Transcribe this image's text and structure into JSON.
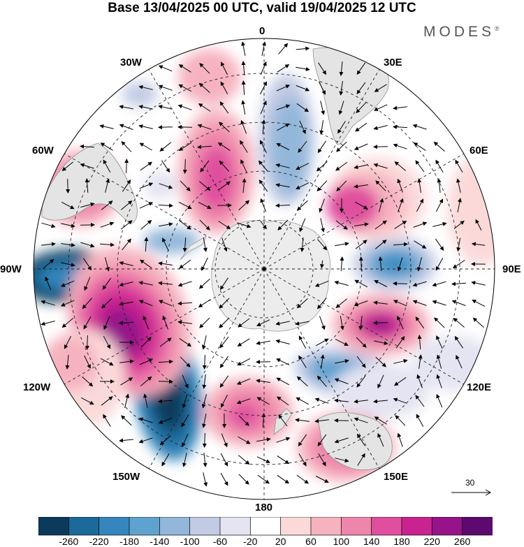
{
  "title": "Base 13/04/2025 00 UTC, valid 19/04/2025 12 UTC",
  "brand": "MODES",
  "brand_mark": "®",
  "longitude_labels": {
    "n0": "0",
    "e30": "30E",
    "e60": "60E",
    "e90": "90E",
    "e120": "120E",
    "e150": "150E",
    "s180": "180",
    "w150": "150W",
    "w120": "120W",
    "w90": "90W",
    "w60": "60W",
    "w30": "30W"
  },
  "vector_reference": {
    "label": "30"
  },
  "colorbar": {
    "colors": [
      "#0b3a5c",
      "#1b6a9a",
      "#3586bd",
      "#5ea2cf",
      "#93b7da",
      "#c2cbe4",
      "#e4e4f2",
      "#ffffff",
      "#fbd9d9",
      "#f6b3bf",
      "#ee86ab",
      "#e04f9e",
      "#c92390",
      "#97138a",
      "#5c0a6f"
    ],
    "tick_labels": [
      "-260",
      "-220",
      "-180",
      "-140",
      "-100",
      "-60",
      "-20",
      "20",
      "60",
      "100",
      "140",
      "180",
      "220",
      "260"
    ]
  },
  "field_colors": {
    "ocean_background": "#ffffff",
    "land": "#ececec",
    "coast": "#9a9a9a"
  }
}
